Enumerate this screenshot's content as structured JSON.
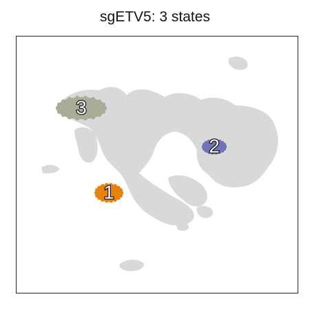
{
  "chart_data": {
    "type": "scatter",
    "title": "sgETV5: 3 states",
    "xlabel": "",
    "ylabel": "",
    "grid": false,
    "legend": "none",
    "background_cells_color": "#d9d9d9",
    "states": [
      {
        "label": "1",
        "color": "#e8820c"
      },
      {
        "label": "2",
        "color": "#6f74b8"
      },
      {
        "label": "3",
        "color": "#a8ad98"
      }
    ]
  }
}
